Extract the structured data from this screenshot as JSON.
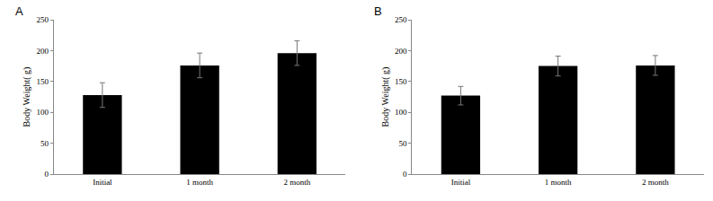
{
  "chart_data": [
    {
      "type": "bar",
      "title": "A",
      "categories": [
        "Initial",
        "1 month",
        "2 month"
      ],
      "values": [
        128,
        176,
        196
      ],
      "errors": [
        20,
        20,
        20
      ],
      "color": "#000000",
      "y_label": "Body Weight( g)",
      "ylim": [
        0,
        250
      ],
      "yticks": [
        0,
        50,
        100,
        150,
        200,
        250
      ],
      "grid": false
    },
    {
      "type": "bar",
      "title": "B",
      "categories": [
        "Initial",
        "1 month",
        "2 month"
      ],
      "values": [
        127,
        175,
        176
      ],
      "errors": [
        15,
        16,
        16
      ],
      "color": "#000000",
      "y_label": "Body Weight( g)",
      "ylim": [
        0,
        250
      ],
      "yticks": [
        0,
        50,
        100,
        150,
        200,
        250
      ],
      "grid": false
    }
  ]
}
